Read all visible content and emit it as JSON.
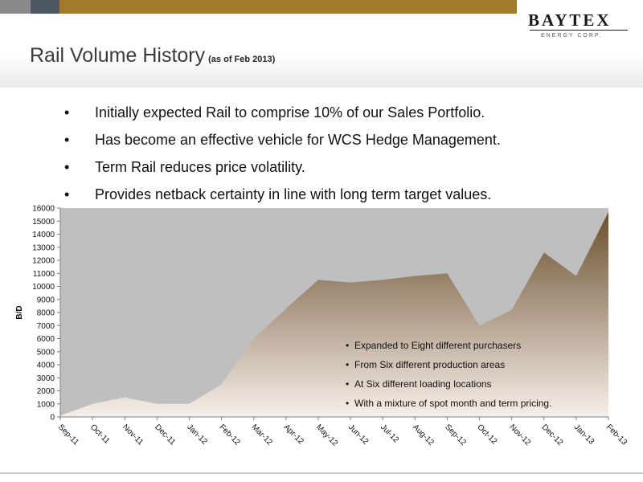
{
  "header": {
    "title": "Rail Volume History",
    "subtitle": "(as of Feb 2013)",
    "logo_main": "BAYTEX",
    "logo_sub": "ENERGY CORP."
  },
  "bullets": [
    "Initially expected Rail to comprise 10% of our Sales Portfolio.",
    "Has become an effective vehicle for WCS Hedge Management.",
    "Term Rail reduces price volatility.",
    "Provides netback certainty in line with long term target values."
  ],
  "chart_data": {
    "type": "area",
    "categories": [
      "Sep-11",
      "Oct-11",
      "Nov-11",
      "Dec-11",
      "Jan-12",
      "Feb-12",
      "Mar-12",
      "Apr-12",
      "May-12",
      "Jun-12",
      "Jul-12",
      "Aug-12",
      "Sep-12",
      "Oct-12",
      "Nov-12",
      "Dec-12",
      "Jan-13",
      "Feb-13"
    ],
    "values": [
      100,
      1000,
      1500,
      1000,
      1000,
      2500,
      6000,
      8300,
      10500,
      10300,
      10500,
      10800,
      11000,
      7000,
      8200,
      12600,
      10800,
      15700
    ],
    "ylabel": "B/D",
    "ylim": [
      0,
      16000
    ],
    "yticks": [
      "0",
      "1000",
      "2000",
      "3000",
      "4000",
      "5000",
      "6000",
      "7000",
      "8000",
      "9000",
      "10000",
      "11000",
      "12000",
      "13000",
      "14000",
      "15000",
      "16000"
    ],
    "annotations": [
      "Expanded to Eight different purchasers",
      "From Six different production areas",
      "At Six different loading locations",
      "With a mixture of spot month and term pricing."
    ],
    "colors": {
      "plot_bg": "#bfbfbf",
      "area_top": "#6b4f2e",
      "area_bottom": "#f7efe9"
    }
  }
}
